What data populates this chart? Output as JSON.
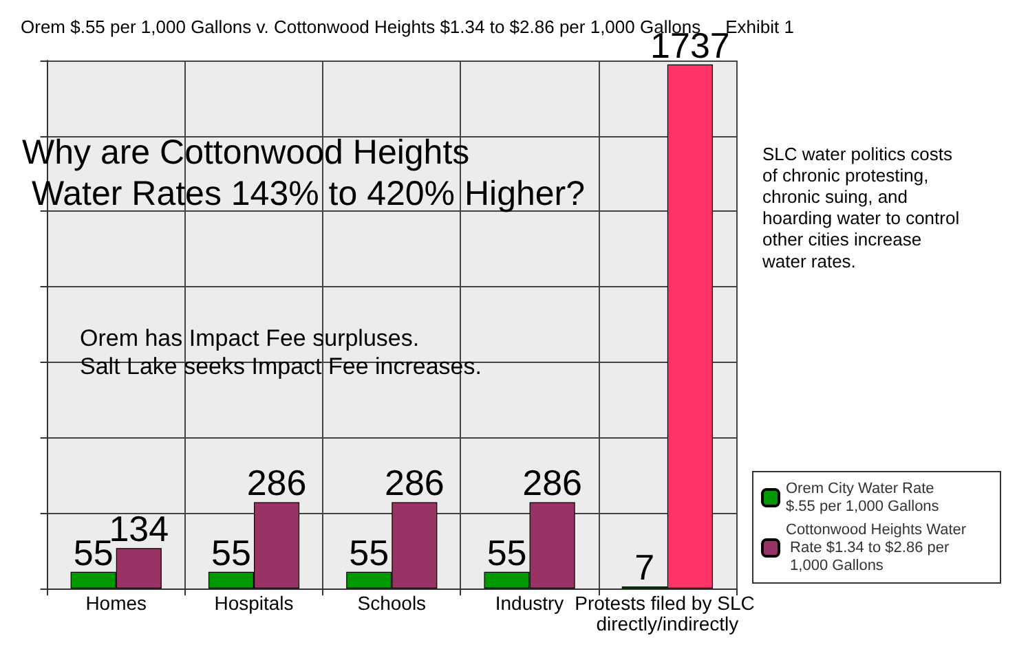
{
  "chart_data": {
    "type": "bar",
    "title": "Orem $.55 per 1,000 Gallons v. Cottonwood Heights $1.34 to $2.86 per 1,000 Gallons     Exhibit 1",
    "categories": [
      "Homes",
      "Hospitals",
      "Schools",
      "Industry",
      "Protests filed by SLC directly/indirectly"
    ],
    "series": [
      {
        "name": "Orem City Water Rate $.55 per 1,000 Gallons",
        "color": "#009900",
        "values": [
          55,
          55,
          55,
          55,
          7
        ]
      },
      {
        "name": "Cottonwood Heights Water Rate $1.34 to $2.86 per 1,000 Gallons",
        "color": "#993366",
        "colors": [
          "#993366",
          "#993366",
          "#993366",
          "#993366",
          "#ff3366"
        ],
        "values": [
          134,
          286,
          286,
          286,
          1737
        ]
      }
    ],
    "ylim": [
      0,
      1750
    ],
    "yticks": [
      0,
      {
        "value": 250,
        "label": null
      },
      {
        "value": 500,
        "label": null
      },
      {
        "value": 750,
        "label": null
      },
      {
        "value": 1000,
        "label": null
      },
      {
        "value": 1250,
        "label": null
      },
      {
        "value": 1500,
        "label": null
      },
      {
        "value": 1750,
        "label": null
      }
    ],
    "tick_labels": "x",
    "data_labels": true,
    "grid": true,
    "legend": "bottom right",
    "annotations": [
      "Why are Cottonwood Heights\n Water Rates 143% to 420% Higher?",
      "Orem has Impact Fee surpluses.\nSalt Lake seeks Impact Fee increases.",
      "SLC water politics costs\nof chronic protesting,\nchronic suing, and\nhoarding water to control\nother cities increase\nwater rates."
    ]
  }
}
